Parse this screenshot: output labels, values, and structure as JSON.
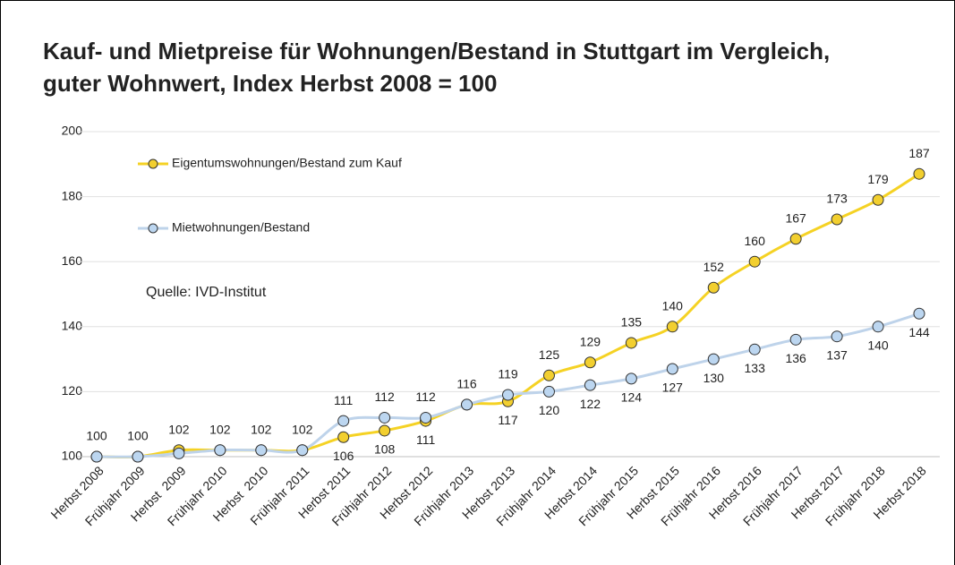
{
  "chart_data": {
    "type": "line",
    "title": [
      "Kauf- und Mietpreise für Wohnungen/Bestand in Stuttgart im Vergleich,",
      "guter Wohnwert, Index Herbst 2008 = 100"
    ],
    "annotation": "Quelle: IVD-Institut",
    "categories": [
      "Herbst 2008",
      "Frühjahr 2009",
      "Herbst  2009",
      "Frühjahr 2010",
      "Herbst  2010",
      "Frühjahr 2011",
      "Herbst 2011",
      "Frühjahr 2012",
      "Herbst 2012",
      "Frühjahr 2013",
      "Herbst 2013",
      "Frühjahr 2014",
      "Herbst 2014",
      "Frühjahr 2015",
      "Herbst 2015",
      "Frühjahr 2016",
      "Herbst 2016",
      "Frühjahr 2017",
      "Herbst 2017",
      "Frühjahr 2018",
      "Herbst 2018"
    ],
    "series": [
      {
        "name": "Eigentumswohnungen/Bestand zum Kauf",
        "color": "#f5d224",
        "marker_color": "#f2cf2f",
        "values": [
          100,
          100,
          102,
          102,
          102,
          102,
          106,
          108,
          111,
          116,
          117,
          125,
          129,
          135,
          140,
          152,
          160,
          167,
          173,
          179,
          187
        ]
      },
      {
        "name": "Mietwohnungen/Bestand",
        "color": "#bed3ea",
        "marker_color": "#bcd6f0",
        "values": [
          100,
          100,
          101,
          102,
          102,
          102,
          111,
          112,
          112,
          116,
          119,
          120,
          122,
          124,
          127,
          130,
          133,
          136,
          137,
          140,
          144
        ],
        "value_labels": [
          null,
          null,
          null,
          null,
          null,
          null,
          "111",
          "112",
          "112",
          null,
          "119",
          "120",
          "122",
          "124",
          "127",
          "130",
          "133",
          "136",
          "137",
          "140",
          "144"
        ]
      }
    ],
    "ylim": [
      100,
      200
    ],
    "yticks": [
      100,
      120,
      140,
      160,
      180,
      200
    ],
    "grid": true,
    "legend": "top-left"
  }
}
